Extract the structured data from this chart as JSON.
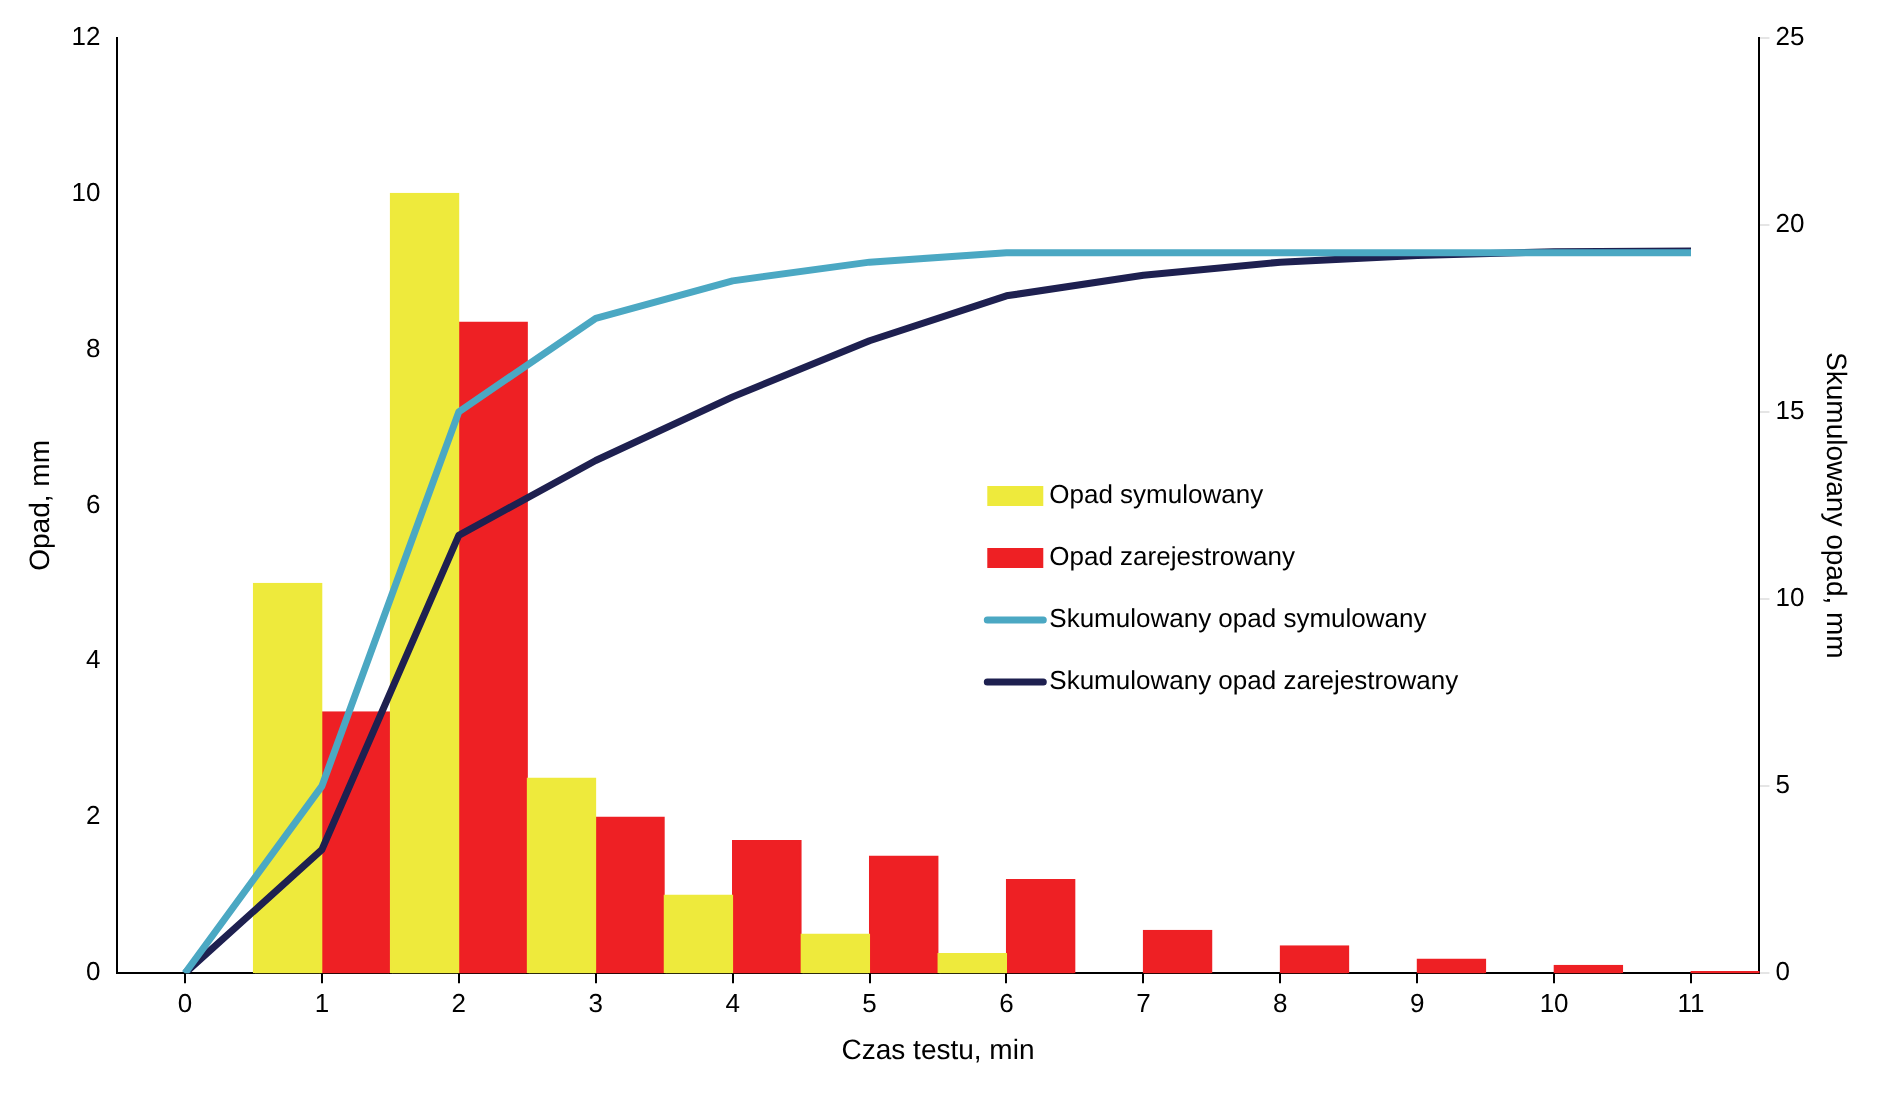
{
  "chart_data": {
    "type": "bar",
    "categories": [
      "0",
      "1",
      "2",
      "3",
      "4",
      "5",
      "6",
      "7",
      "8",
      "9",
      "10",
      "11"
    ],
    "xlabel": "Czas testu, min",
    "ylabel": "Opad, mm",
    "y2label": "Skumulowany opad, mm",
    "ylim": [
      0,
      12
    ],
    "yticks": [
      0,
      2,
      4,
      6,
      8,
      10,
      12
    ],
    "y2lim": [
      0,
      25
    ],
    "y2ticks": [
      0,
      5,
      10,
      15,
      20,
      25
    ],
    "legend": "right",
    "grid": false,
    "series": [
      {
        "name": "Opad symulowany",
        "type": "bar",
        "color": "#eeea3c",
        "values": [
          0,
          5,
          10,
          2.5,
          1,
          0.5,
          0.25,
          0,
          0,
          0,
          0,
          0
        ]
      },
      {
        "name": "Opad zarejestrowany",
        "type": "bar",
        "color": "#ee2024",
        "values": [
          0,
          3.35,
          8.35,
          2,
          1.7,
          1.5,
          1.2,
          0.55,
          0.35,
          0.18,
          0.1,
          0.02
        ]
      },
      {
        "name": "Skumulowany opad symulowany",
        "type": "line",
        "axis": "y2",
        "color": "#4ba8c3",
        "values": [
          0,
          5,
          15,
          17.5,
          18.5,
          19,
          19.25,
          19.25,
          19.25,
          19.25,
          19.25,
          19.25
        ]
      },
      {
        "name": "Skumulowany opad zarejestrowany",
        "type": "line",
        "axis": "y2",
        "color": "#1e2050",
        "values": [
          0,
          3.3,
          11.7,
          13.7,
          15.4,
          16.9,
          18.1,
          18.65,
          19,
          19.18,
          19.28,
          19.3
        ]
      }
    ]
  }
}
